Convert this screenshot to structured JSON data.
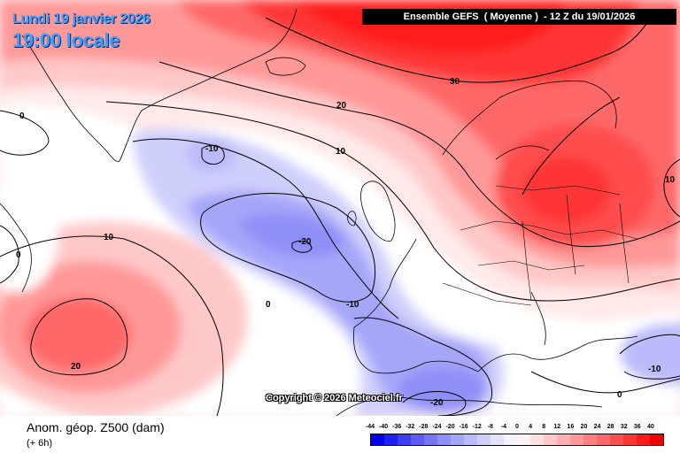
{
  "header": {
    "date": "Lundi 19 janvier 2026",
    "local_time": "19:00 locale",
    "run": "Ensemble GEFS  ( Moyenne )  - 12 Z du 19/01/2026"
  },
  "copyright": "Copyright © 2026 Meteociel.fr",
  "footer": {
    "field": "Anom. géop. Z500 (dam)",
    "lead": "(+ 6h)"
  },
  "legend": {
    "labels": [
      "-44",
      "-40",
      "-36",
      "-32",
      "-28",
      "-24",
      "-20",
      "-16",
      "-12",
      "-8",
      "-4",
      "0",
      "4",
      "8",
      "12",
      "16",
      "20",
      "24",
      "28",
      "32",
      "36",
      "40"
    ],
    "colors": [
      "#0000ee",
      "#1f1ff2",
      "#3d3df3",
      "#5c5cf5",
      "#7676f6",
      "#8f8ff8",
      "#a6a6f9",
      "#bbbbfb",
      "#cfcffc",
      "#e2e2fd",
      "#f3f3fe",
      "#fff2f2",
      "#ffdede",
      "#ffc8c8",
      "#ffb0b0",
      "#ff9898",
      "#ff8080",
      "#ff6868",
      "#ff4e4e",
      "#ff3434",
      "#ff1a1a",
      "#f00000"
    ]
  },
  "contour_labels": [
    {
      "id": "label-30",
      "text": "30"
    },
    {
      "id": "label-20-north",
      "text": "20"
    },
    {
      "id": "label-10-north",
      "text": "10"
    },
    {
      "id": "label-10-east",
      "text": "10"
    },
    {
      "id": "label-0-west",
      "text": "0"
    },
    {
      "id": "label-10-west",
      "text": "10"
    },
    {
      "id": "label-0-greenland",
      "text": "0"
    },
    {
      "id": "label-neg10-labrador",
      "text": "-10"
    },
    {
      "id": "label-neg20-atlantic",
      "text": "-20"
    },
    {
      "id": "label-neg10-biscay",
      "text": "-10"
    },
    {
      "id": "label-0-mid",
      "text": "0"
    },
    {
      "id": "label-20-south",
      "text": "20"
    },
    {
      "id": "label-neg20-med",
      "text": "-20"
    },
    {
      "id": "label-neg10-east",
      "text": "-10"
    },
    {
      "id": "label-0-east",
      "text": "0"
    }
  ]
}
